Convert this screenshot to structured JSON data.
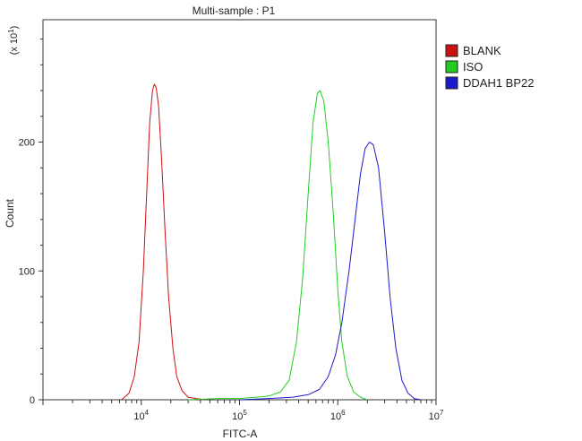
{
  "chart_data": {
    "type": "line",
    "title": "Multi-sample : P1",
    "xlabel": "FITC-A",
    "ylabel": "Count",
    "y_multiplier_label": "(x 10",
    "y_multiplier_exp": "1",
    "x_scale": "log",
    "xlim": [
      1000,
      10000000
    ],
    "ylim": [
      0,
      295
    ],
    "y_ticks": [
      0,
      100,
      200
    ],
    "y_tick_labels": [
      "0",
      "100",
      "200"
    ],
    "x_ticks": [
      10000,
      100000,
      1000000,
      10000000
    ],
    "x_tick_labels": [
      {
        "base": "10",
        "exp": "4"
      },
      {
        "base": "10",
        "exp": "5"
      },
      {
        "base": "10",
        "exp": "6"
      },
      {
        "base": "10",
        "exp": "7"
      }
    ],
    "legend_position": "top-right",
    "series": [
      {
        "name": "BLANK",
        "color": "#cc1111",
        "x": [
          6300,
          7500,
          8500,
          9500,
          10500,
          11500,
          12200,
          13000,
          13600,
          14200,
          15000,
          16000,
          17500,
          19000,
          21000,
          23000,
          26000,
          30000,
          36000,
          45000
        ],
        "y": [
          0,
          5,
          18,
          45,
          100,
          170,
          215,
          240,
          245,
          242,
          228,
          190,
          130,
          80,
          40,
          18,
          7,
          2,
          1,
          0
        ]
      },
      {
        "name": "ISO",
        "color": "#22cc22",
        "x": [
          30000,
          60000,
          100000,
          150000,
          200000,
          260000,
          320000,
          380000,
          440000,
          500000,
          560000,
          620000,
          660000,
          720000,
          800000,
          900000,
          1000000,
          1100000,
          1250000,
          1450000,
          1700000,
          2000000
        ],
        "y": [
          0,
          1,
          1,
          2,
          3,
          6,
          15,
          45,
          95,
          160,
          215,
          238,
          240,
          232,
          200,
          145,
          85,
          45,
          18,
          6,
          2,
          0
        ]
      },
      {
        "name": "DDAH1 BP22",
        "color": "#1a1acc",
        "x": [
          100000,
          200000,
          350000,
          500000,
          650000,
          800000,
          950000,
          1100000,
          1300000,
          1500000,
          1700000,
          1900000,
          2100000,
          2300000,
          2600000,
          3000000,
          3400000,
          3900000,
          4500000,
          5200000,
          6000000,
          7000000
        ],
        "y": [
          0,
          1,
          2,
          4,
          8,
          18,
          35,
          60,
          100,
          140,
          175,
          195,
          200,
          198,
          180,
          130,
          80,
          40,
          15,
          5,
          1,
          0
        ]
      }
    ]
  }
}
